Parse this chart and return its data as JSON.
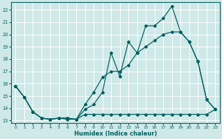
{
  "xlabel": "Humidex (Indice chaleur)",
  "xlim": [
    -0.5,
    23.5
  ],
  "ylim": [
    12.8,
    22.6
  ],
  "yticks": [
    13,
    14,
    15,
    16,
    17,
    18,
    19,
    20,
    21,
    22
  ],
  "xticks": [
    0,
    1,
    2,
    3,
    4,
    5,
    6,
    7,
    8,
    9,
    10,
    11,
    12,
    13,
    14,
    15,
    16,
    17,
    18,
    19,
    20,
    21,
    22,
    23
  ],
  "bg_color": "#cfe8e8",
  "line_color": "#006060",
  "grid_color": "#ffffff",
  "series_top": {
    "x": [
      0,
      1,
      2,
      3,
      4,
      5,
      6,
      7,
      8,
      9,
      10,
      11,
      12,
      13,
      14,
      15,
      16,
      17,
      18,
      19,
      20,
      21,
      22,
      23
    ],
    "y": [
      15.8,
      14.9,
      13.7,
      13.2,
      13.1,
      13.2,
      13.1,
      13.1,
      13.9,
      14.3,
      15.3,
      18.5,
      16.6,
      19.4,
      18.5,
      20.7,
      20.7,
      21.3,
      22.3,
      20.2,
      19.4,
      17.8,
      14.7,
      13.9
    ]
  },
  "series_mid": {
    "x": [
      0,
      1,
      2,
      3,
      4,
      5,
      6,
      7,
      8,
      9,
      10,
      11,
      12,
      13,
      14,
      15,
      16,
      17,
      18,
      19,
      20,
      21,
      22,
      23
    ],
    "y": [
      15.8,
      14.9,
      13.7,
      13.2,
      13.1,
      13.2,
      13.2,
      13.1,
      14.3,
      15.3,
      16.5,
      17.0,
      17.0,
      17.5,
      18.5,
      19.0,
      19.5,
      20.0,
      20.2,
      20.2,
      19.4,
      17.8,
      14.7,
      13.9
    ]
  },
  "series_bot": {
    "x": [
      0,
      1,
      2,
      3,
      4,
      5,
      6,
      7,
      8,
      9,
      10,
      11,
      12,
      13,
      14,
      15,
      16,
      17,
      18,
      19,
      20,
      21,
      22,
      23
    ],
    "y": [
      15.8,
      14.9,
      13.7,
      13.2,
      13.1,
      13.2,
      13.2,
      13.1,
      13.5,
      13.5,
      13.5,
      13.5,
      13.5,
      13.5,
      13.5,
      13.5,
      13.5,
      13.5,
      13.5,
      13.5,
      13.5,
      13.5,
      13.5,
      13.9
    ]
  }
}
